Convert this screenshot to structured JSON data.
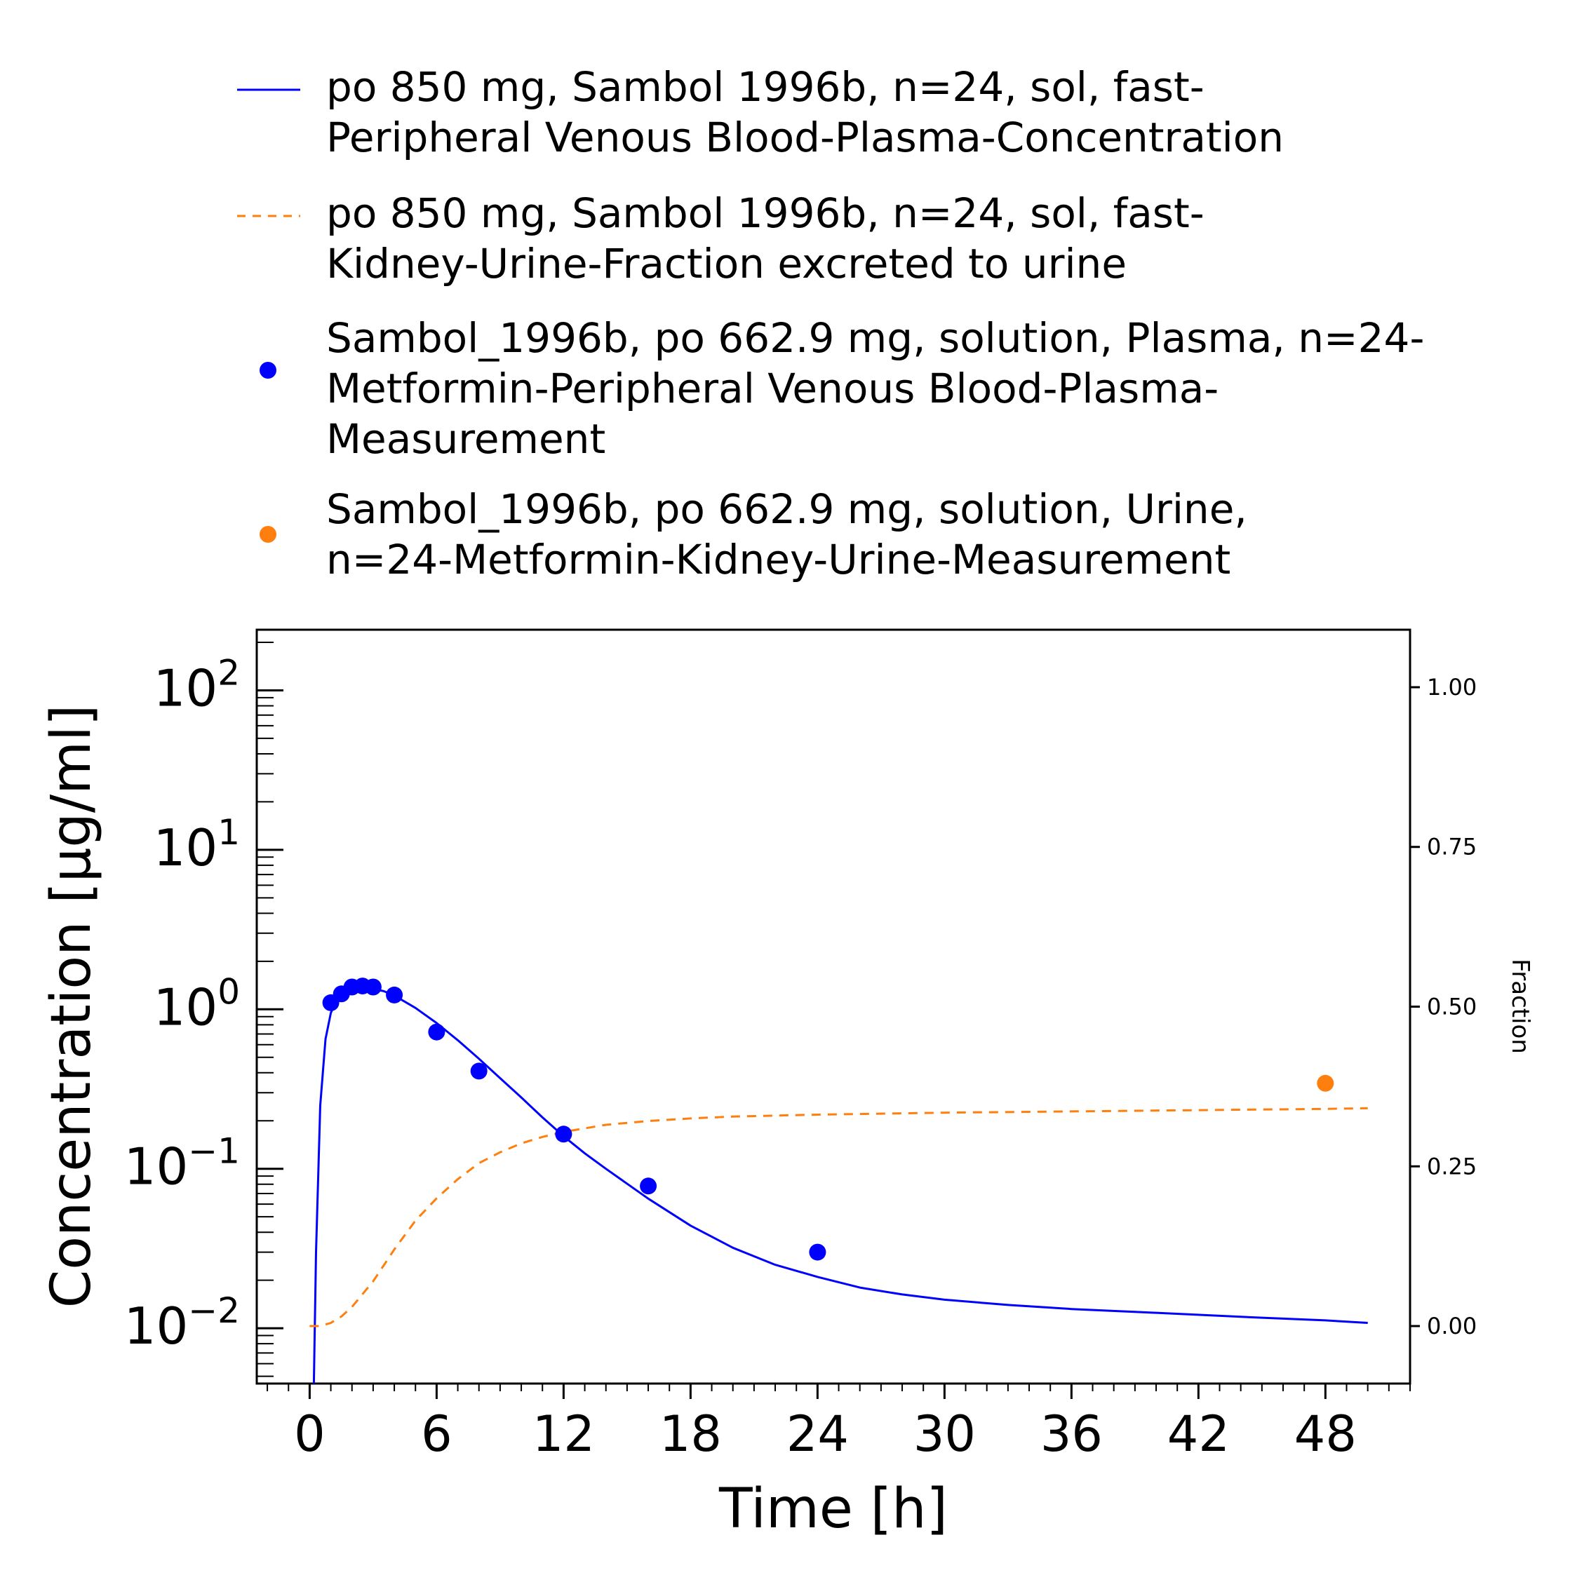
{
  "chart_data": {
    "type": "line",
    "xlabel": "Time [h]",
    "ylabel_left": "Concentration [µg/ml]",
    "ylabel_right": "Fraction",
    "xlim": [
      -2.5,
      52
    ],
    "ylim_left": [
      0.0045,
      240
    ],
    "ylim_right": [
      -0.09,
      1.09
    ],
    "yscale_left": "log",
    "x_ticks": [
      0,
      6,
      12,
      18,
      24,
      30,
      36,
      42,
      48
    ],
    "y_ticks_left": [
      {
        "value": 0.01,
        "base": "10",
        "exp": "−2"
      },
      {
        "value": 0.1,
        "base": "10",
        "exp": "−1"
      },
      {
        "value": 1,
        "base": "10",
        "exp": "0"
      },
      {
        "value": 10,
        "base": "10",
        "exp": "1"
      },
      {
        "value": 100,
        "base": "10",
        "exp": "2"
      }
    ],
    "y_ticks_right": [
      {
        "value": 0.0,
        "label": "0.00"
      },
      {
        "value": 0.25,
        "label": "0.25"
      },
      {
        "value": 0.5,
        "label": "0.50"
      },
      {
        "value": 0.75,
        "label": "0.75"
      },
      {
        "value": 1.0,
        "label": "1.00"
      }
    ],
    "grid": false,
    "legend_position": "top",
    "series": [
      {
        "name": "po 850 mg, Sambol 1996b, n=24, sol, fast-\nPeripheral Venous Blood-Plasma-Concentration",
        "kind": "line",
        "style": "solid",
        "color": "#0000ff",
        "axis": "left",
        "x": [
          0.2,
          0.3,
          0.5,
          0.75,
          1.0,
          1.3,
          1.6,
          2.0,
          2.5,
          3.0,
          3.5,
          4.0,
          5.0,
          6.0,
          7.0,
          8.0,
          9.0,
          10.0,
          11.0,
          12.0,
          13.0,
          14.0,
          16.0,
          18.0,
          20.0,
          22.0,
          24.0,
          26.0,
          28.0,
          30.0,
          33.0,
          36.0,
          40.0,
          44.0,
          48.0,
          50.0
        ],
        "y": [
          0.0045,
          0.03,
          0.25,
          0.65,
          0.95,
          1.15,
          1.25,
          1.32,
          1.35,
          1.34,
          1.3,
          1.22,
          1.02,
          0.82,
          0.64,
          0.49,
          0.37,
          0.28,
          0.21,
          0.16,
          0.125,
          0.1,
          0.065,
          0.044,
          0.032,
          0.025,
          0.021,
          0.018,
          0.0163,
          0.0151,
          0.014,
          0.0132,
          0.0125,
          0.0118,
          0.0112,
          0.0108
        ]
      },
      {
        "name": "po 850 mg, Sambol 1996b, n=24, sol, fast-\nKidney-Urine-Fraction excreted to urine",
        "kind": "line",
        "style": "dashed",
        "color": "#ff7f0e",
        "axis": "right",
        "x": [
          0,
          0.5,
          1,
          1.5,
          2,
          3,
          4,
          5,
          6,
          7,
          8,
          9,
          10,
          11,
          12,
          14,
          16,
          18,
          20,
          24,
          30,
          36,
          42,
          48,
          50
        ],
        "y": [
          0.0,
          0.0,
          0.005,
          0.015,
          0.03,
          0.07,
          0.12,
          0.165,
          0.2,
          0.23,
          0.255,
          0.272,
          0.286,
          0.296,
          0.304,
          0.315,
          0.321,
          0.325,
          0.328,
          0.331,
          0.334,
          0.336,
          0.338,
          0.34,
          0.341
        ]
      },
      {
        "name": "Sambol_1996b, po 662.9 mg, solution, Plasma, n=24-\nMetformin-Peripheral Venous Blood-Plasma-\nMeasurement",
        "kind": "scatter",
        "color": "#0000ff",
        "axis": "left",
        "x": [
          1.0,
          1.5,
          2.0,
          2.5,
          3.0,
          4.0,
          6.0,
          8.0,
          12.0,
          16.0,
          24.0
        ],
        "y": [
          1.1,
          1.25,
          1.38,
          1.4,
          1.38,
          1.23,
          0.72,
          0.41,
          0.165,
          0.078,
          0.03
        ]
      },
      {
        "name": "Sambol_1996b, po 662.9 mg, solution, Urine,\nn=24-Metformin-Kidney-Urine-Measurement",
        "kind": "scatter",
        "color": "#ff7f0e",
        "axis": "right",
        "x": [
          48.0
        ],
        "y": [
          0.38
        ]
      }
    ]
  }
}
